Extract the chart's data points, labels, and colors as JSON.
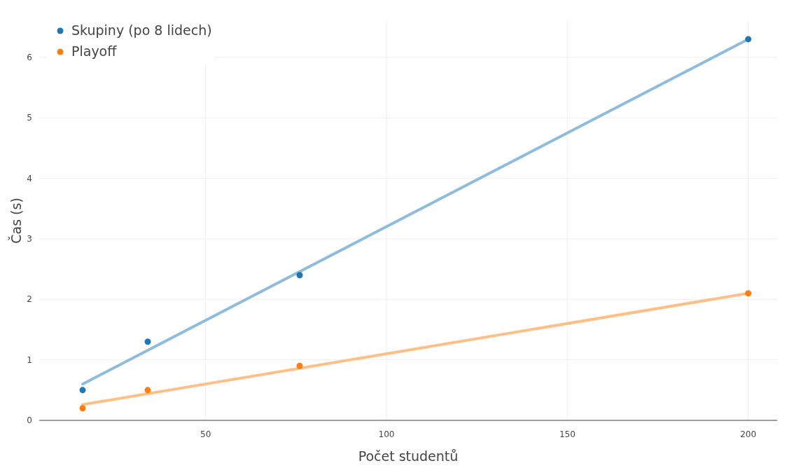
{
  "chart_data": {
    "type": "scatter",
    "xlabel": "Počet studentů",
    "ylabel": "Čas (s)",
    "xlim": [
      4,
      208
    ],
    "ylim": [
      0,
      6.6
    ],
    "xticks": [
      50,
      100,
      150,
      200
    ],
    "yticks": [
      0,
      1,
      2,
      3,
      4,
      5,
      6
    ],
    "grid": true,
    "legend": "top left",
    "series": [
      {
        "name": "Skupiny (po 8 lidech)",
        "color": "#1f77b4",
        "marker": "circle",
        "x": [
          16,
          34,
          76,
          200
        ],
        "values": [
          0.5,
          1.3,
          2.4,
          6.3
        ]
      },
      {
        "name": "Playoff",
        "color": "#ff7f0e",
        "marker": "circle",
        "x": [
          16,
          34,
          76,
          200
        ],
        "values": [
          0.2,
          0.5,
          0.9,
          2.1
        ]
      },
      {
        "type": "line",
        "color": "#8fbcdb",
        "x": [
          16,
          200
        ],
        "values": [
          0.6,
          6.3
        ]
      },
      {
        "type": "line",
        "color": "#ffbf86",
        "x": [
          16,
          200
        ],
        "values": [
          0.26,
          2.1
        ]
      }
    ]
  }
}
